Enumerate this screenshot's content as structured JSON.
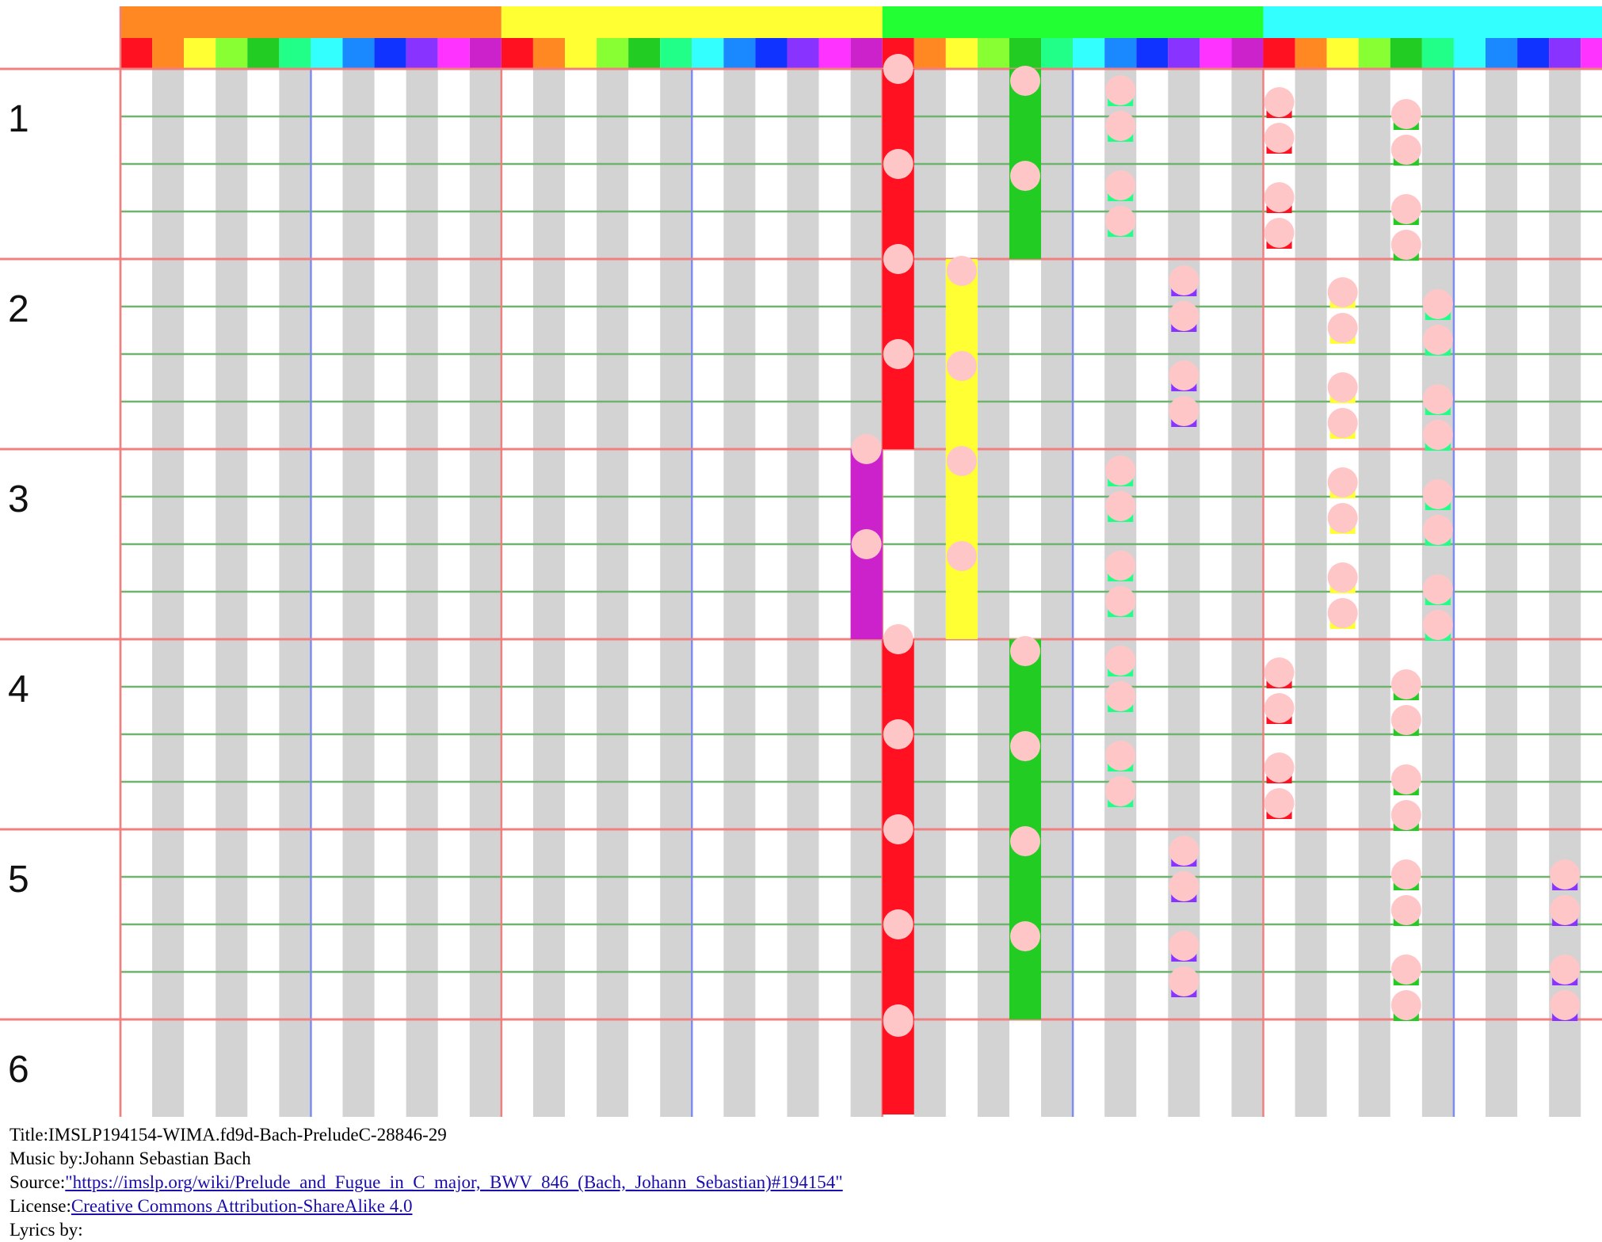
{
  "measures": [
    "1",
    "2",
    "3",
    "4",
    "5",
    "6"
  ],
  "octave_colors": [
    "#ff8822",
    "#ffff33",
    "#22ff33",
    "#33ffff"
  ],
  "pitch_colors": [
    "#ff1122",
    "#ff8822",
    "#ffff33",
    "#88ff33",
    "#22cc22",
    "#22ff88",
    "#33ffff",
    "#1a88ff",
    "#1133ff",
    "#8833ff",
    "#ff33ff",
    "#cc22cc"
  ],
  "note_color": "#ffc6c8",
  "metadata": {
    "title_label": "Title:",
    "title": "IMSLP194154-WIMA.fd9d-Bach-PreludeC-28846-29",
    "music_label": "Music by:",
    "composer": "Johann Sebastian Bach",
    "source_label": "Source:",
    "source": "\"https://imslp.org/wiki/Prelude_and_Fugue_in_C_major,_BWV_846_(Bach,_Johann_Sebastian)#194154\"",
    "license_label": "License:",
    "license": "Creative Commons Attribution-ShareAlike 4.0",
    "extra": "Lyrics by:"
  }
}
